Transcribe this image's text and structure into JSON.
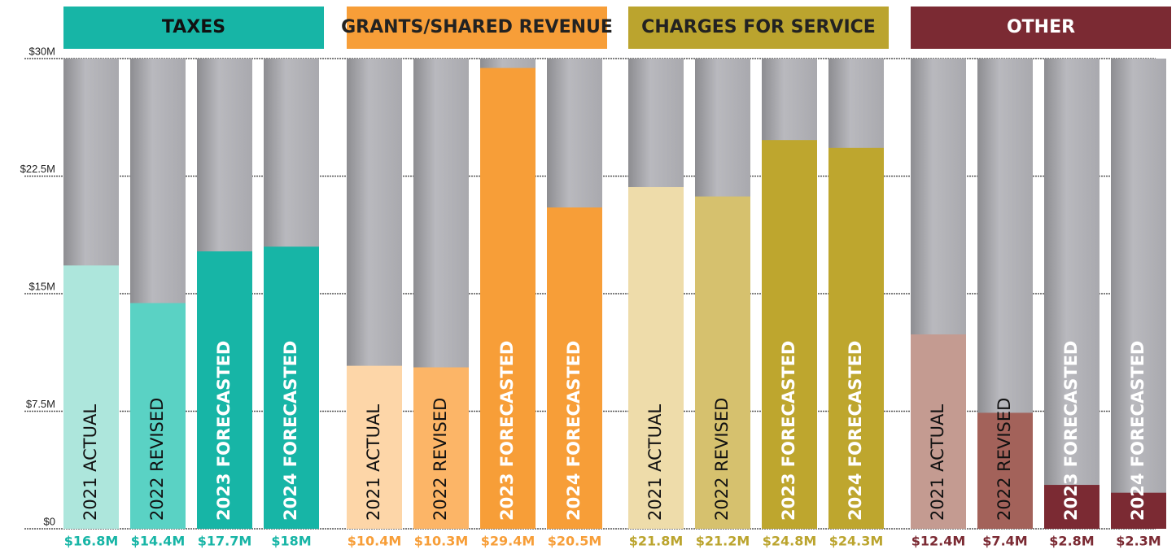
{
  "chart_data": {
    "type": "bar",
    "categories": [
      "2021 ACTUAL",
      "2022 REVISED",
      "2023 FORECASTED",
      "2024 FORECASTED"
    ],
    "series": [
      {
        "name": "TAXES",
        "color": "#17b5a6",
        "bar_colors": [
          "#ade6dc",
          "#5ad2c4",
          "#17b5a6",
          "#17b5a6"
        ],
        "values": [
          16.8,
          14.4,
          17.7,
          18
        ],
        "value_labels": [
          "$16.8M",
          "$14.4M",
          "$17.7M",
          "$18M"
        ]
      },
      {
        "name": "GRANTS/SHARED REVENUE",
        "color": "#f79e38",
        "bar_colors": [
          "#fdd6a8",
          "#fcb567",
          "#f79e38",
          "#f79e38"
        ],
        "values": [
          10.4,
          10.3,
          29.4,
          20.5
        ],
        "value_labels": [
          "$10.4M",
          "$10.3M",
          "$29.4M",
          "$20.5M"
        ]
      },
      {
        "name": "CHARGES FOR SERVICE",
        "color": "#bba42e",
        "bar_colors": [
          "#eedcaa",
          "#d6c16e",
          "#bea62e",
          "#bea62e"
        ],
        "values": [
          21.8,
          21.2,
          24.8,
          24.3
        ],
        "value_labels": [
          "$21.8M",
          "$21.2M",
          "$24.8M",
          "$24.3M"
        ]
      },
      {
        "name": "OTHER",
        "color": "#7b2a33",
        "bar_colors": [
          "#c49b91",
          "#a3625a",
          "#7b2a33",
          "#7b2a33"
        ],
        "values": [
          12.4,
          7.4,
          2.8,
          2.3
        ],
        "value_labels": [
          "$12.4M",
          "$7.4M",
          "$2.8M",
          "$2.3M"
        ]
      }
    ],
    "ylim": [
      0,
      30
    ],
    "yticks": [
      {
        "value": 0,
        "label": "$0"
      },
      {
        "value": 7.5,
        "label": "$7.5M"
      },
      {
        "value": 15,
        "label": "$15M"
      },
      {
        "value": 22.5,
        "label": "$22.5M"
      },
      {
        "value": 30,
        "label": "$30M"
      }
    ],
    "grid": true
  }
}
